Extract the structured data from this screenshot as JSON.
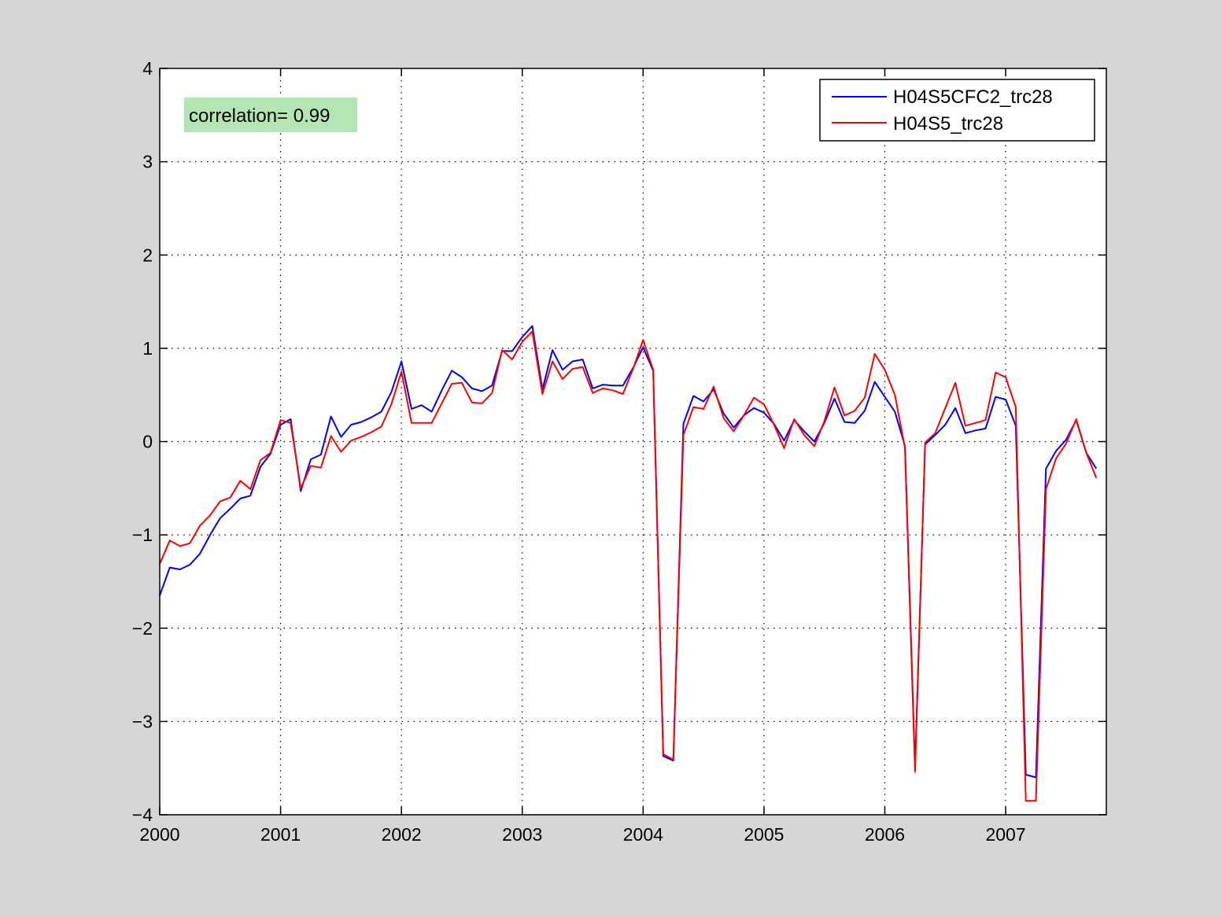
{
  "chart_data": {
    "type": "line",
    "title": "",
    "xlabel": "",
    "ylabel": "",
    "xlim": [
      2000,
      2007.833
    ],
    "ylim": [
      -4,
      4
    ],
    "grid": true,
    "x_ticks": [
      "2000",
      "2001",
      "2002",
      "2003",
      "2004",
      "2005",
      "2006",
      "2007"
    ],
    "y_ticks": [
      "−4",
      "−3",
      "−2",
      "−1",
      "0",
      "1",
      "2",
      "3",
      "4"
    ],
    "legend_position": "top-right",
    "annotation": {
      "text": "correlation= 0.99",
      "position": "top-left",
      "background": "#b3e6b3"
    },
    "x_start": 2000,
    "x_step_months": 1,
    "series": [
      {
        "name": "H04S5CFC2_trc28",
        "color": "#0000ff",
        "values": [
          -1.65,
          -1.35,
          -1.37,
          -1.32,
          -1.2,
          -1.0,
          -0.82,
          -0.72,
          -0.61,
          -0.58,
          -0.27,
          -0.13,
          0.18,
          0.24,
          -0.53,
          -0.19,
          -0.14,
          0.27,
          0.05,
          0.18,
          0.21,
          0.26,
          0.32,
          0.53,
          0.86,
          0.35,
          0.39,
          0.32,
          0.55,
          0.76,
          0.69,
          0.57,
          0.54,
          0.6,
          0.97,
          0.97,
          1.12,
          1.24,
          0.56,
          0.98,
          0.77,
          0.86,
          0.88,
          0.57,
          0.61,
          0.6,
          0.6,
          0.79,
          1.01,
          0.76,
          -3.37,
          -3.42,
          0.19,
          0.49,
          0.43,
          0.56,
          0.3,
          0.15,
          0.28,
          0.36,
          0.31,
          0.19,
          0.01,
          0.23,
          0.11,
          0.0,
          0.2,
          0.46,
          0.21,
          0.2,
          0.33,
          0.64,
          0.48,
          0.32,
          -0.05,
          -3.5,
          -0.03,
          0.07,
          0.18,
          0.36,
          0.09,
          0.12,
          0.14,
          0.48,
          0.45,
          0.17,
          -3.57,
          -3.6,
          -0.29,
          -0.1,
          0.02,
          0.23,
          -0.12,
          -0.29
        ]
      },
      {
        "name": "H04S5_trc28",
        "color": "#ff0000",
        "values": [
          -1.31,
          -1.06,
          -1.12,
          -1.09,
          -0.9,
          -0.79,
          -0.64,
          -0.6,
          -0.42,
          -0.51,
          -0.2,
          -0.12,
          0.23,
          0.2,
          -0.5,
          -0.26,
          -0.28,
          0.06,
          -0.11,
          0.01,
          0.05,
          0.1,
          0.16,
          0.4,
          0.75,
          0.2,
          0.2,
          0.2,
          0.41,
          0.62,
          0.63,
          0.42,
          0.41,
          0.52,
          0.98,
          0.88,
          1.07,
          1.18,
          0.51,
          0.86,
          0.67,
          0.78,
          0.8,
          0.52,
          0.57,
          0.55,
          0.51,
          0.78,
          1.09,
          0.77,
          -3.35,
          -3.41,
          0.07,
          0.37,
          0.35,
          0.59,
          0.25,
          0.11,
          0.28,
          0.47,
          0.4,
          0.18,
          -0.07,
          0.24,
          0.07,
          -0.05,
          0.22,
          0.58,
          0.28,
          0.33,
          0.47,
          0.94,
          0.77,
          0.5,
          -0.07,
          -3.54,
          -0.01,
          0.09,
          0.36,
          0.63,
          0.17,
          0.2,
          0.23,
          0.74,
          0.69,
          0.37,
          -3.85,
          -3.85,
          -0.51,
          -0.18,
          -0.02,
          0.24,
          -0.12,
          -0.39
        ]
      }
    ]
  }
}
